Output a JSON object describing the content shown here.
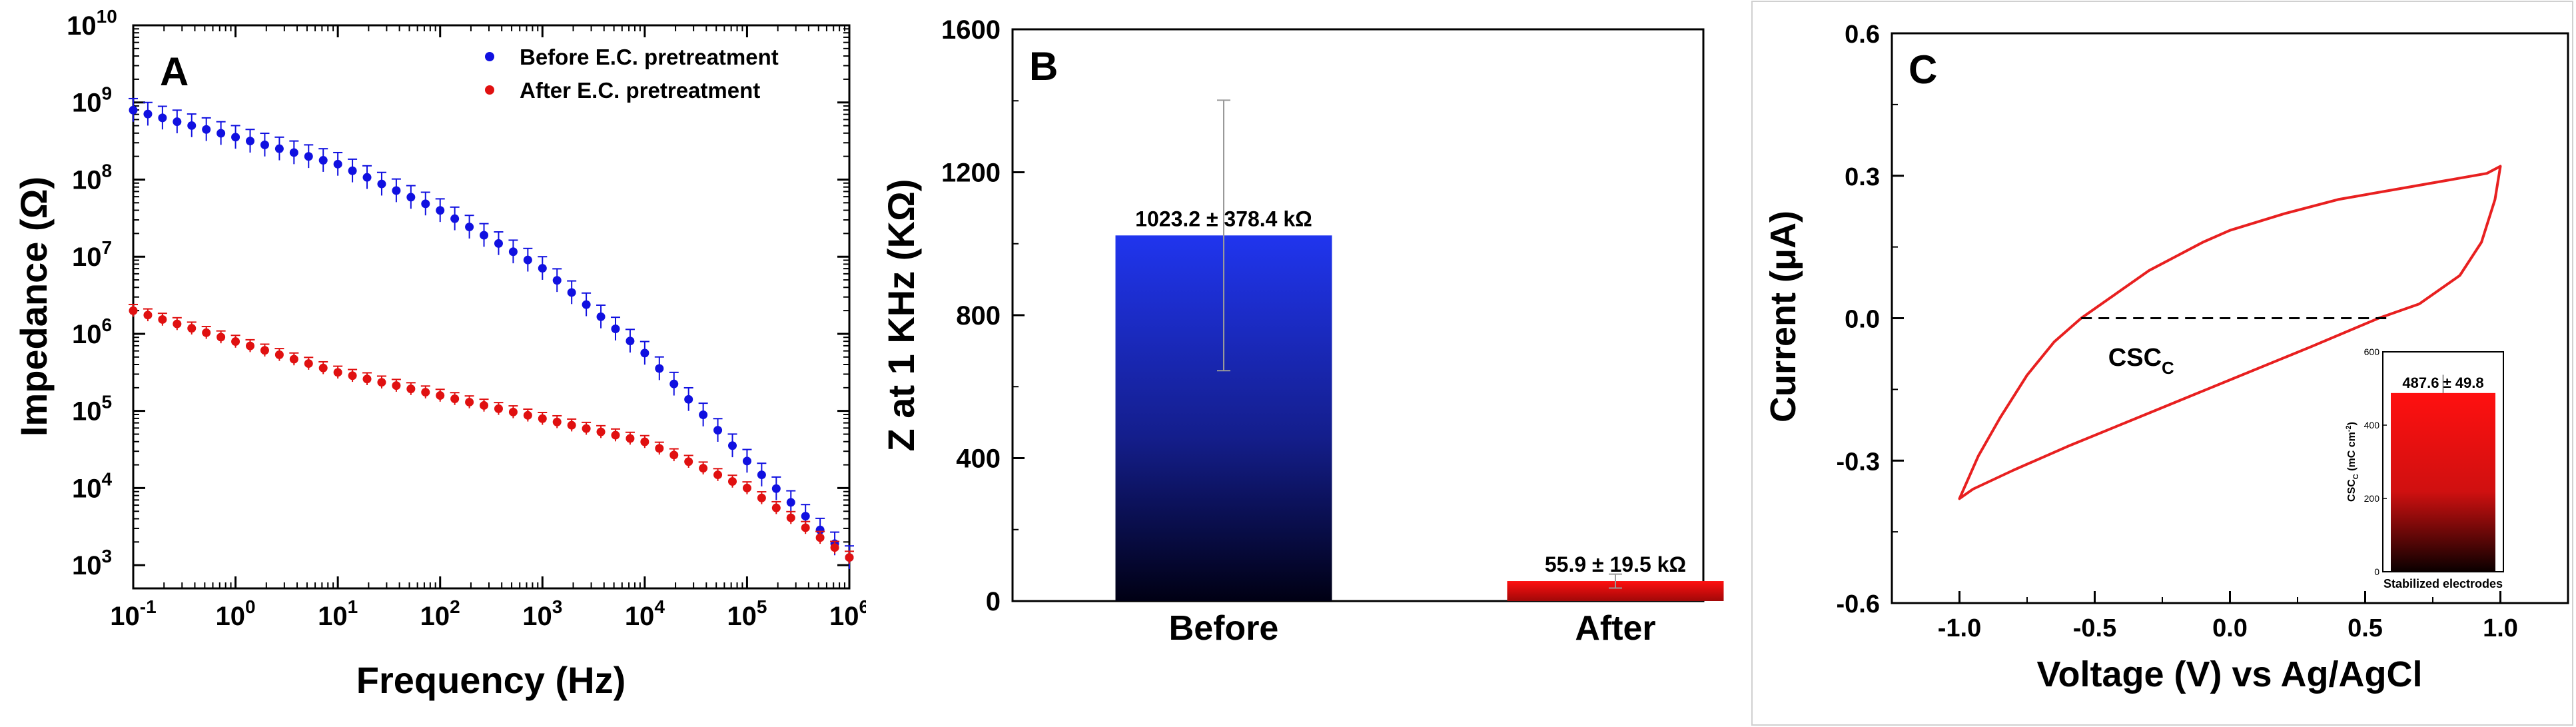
{
  "chart_data": [
    {
      "panel_label": "A",
      "type": "scatter",
      "xlabel": "Frequency (Hz)",
      "ylabel": "Impedance (Ω)",
      "x_scale": "log",
      "y_scale": "log",
      "xlim": [
        0.1,
        1000000
      ],
      "ylim": [
        500,
        10000000000
      ],
      "x_ticks": [
        {
          "base": "10",
          "exp": "-1"
        },
        {
          "base": "10",
          "exp": "0"
        },
        {
          "base": "10",
          "exp": "1"
        },
        {
          "base": "10",
          "exp": "2"
        },
        {
          "base": "10",
          "exp": "3"
        },
        {
          "base": "10",
          "exp": "4"
        },
        {
          "base": "10",
          "exp": "5"
        },
        {
          "base": "10",
          "exp": "6"
        }
      ],
      "y_ticks": [
        {
          "base": "10",
          "exp": "3"
        },
        {
          "base": "10",
          "exp": "4"
        },
        {
          "base": "10",
          "exp": "5"
        },
        {
          "base": "10",
          "exp": "6"
        },
        {
          "base": "10",
          "exp": "7"
        },
        {
          "base": "10",
          "exp": "8"
        },
        {
          "base": "10",
          "exp": "9"
        },
        {
          "base": "10",
          "exp": "10"
        }
      ],
      "legend_position": "top-right",
      "series": [
        {
          "name": "Before E.C. pretreatment",
          "color": "#1010e0",
          "x_log_start": -1,
          "x_log_end": 6,
          "n_points": 50,
          "log_anchors": [
            [
              -1,
              8.9
            ],
            [
              0,
              8.55
            ],
            [
              1,
              8.2
            ],
            [
              2,
              7.6
            ],
            [
              3,
              6.85
            ],
            [
              4,
              5.75
            ],
            [
              5,
              4.35
            ],
            [
              6,
              3.1
            ]
          ],
          "error_log": 0.15
        },
        {
          "name": "After E.C. pretreatment",
          "color": "#e01010",
          "x_log_start": -1,
          "x_log_end": 6,
          "n_points": 50,
          "log_anchors": [
            [
              -1,
              6.3
            ],
            [
              0,
              5.9
            ],
            [
              1,
              5.5
            ],
            [
              2,
              5.2
            ],
            [
              3,
              4.9
            ],
            [
              4,
              4.6
            ],
            [
              5,
              4.0
            ],
            [
              6,
              3.1
            ]
          ],
          "error_log": 0.08
        }
      ]
    },
    {
      "panel_label": "B",
      "type": "bar",
      "ylabel": "Z at 1 KHz (KΩ)",
      "ylim": [
        0,
        1600
      ],
      "y_ticks": [
        "0",
        "400",
        "800",
        "1200",
        "1600"
      ],
      "categories": [
        "Before",
        "After"
      ],
      "values": [
        1023.2,
        55.9
      ],
      "errors": [
        378.4,
        19.5
      ],
      "value_labels": [
        "1023.2 ± 378.4 kΩ",
        "55.9 ± 19.5 kΩ"
      ],
      "colors": [
        "#1f35e0",
        "#ee1010"
      ]
    },
    {
      "panel_label": "C",
      "type": "line",
      "xlabel": "Voltage (V) vs Ag/AgCl",
      "ylabel": "Current (μA)",
      "xlim": [
        -1.25,
        1.25
      ],
      "ylim": [
        -0.6,
        0.6
      ],
      "x_ticks": [
        "-1.0",
        "-0.5",
        "0.0",
        "0.5",
        "1.0"
      ],
      "y_ticks": [
        "-0.6",
        "-0.3",
        "0.0",
        "0.3",
        "0.6"
      ],
      "color": "#e82020",
      "upper_branch": [
        [
          -1.0,
          -0.38
        ],
        [
          -0.93,
          -0.29
        ],
        [
          -0.85,
          -0.21
        ],
        [
          -0.75,
          -0.12
        ],
        [
          -0.65,
          -0.05
        ],
        [
          -0.55,
          0.0
        ],
        [
          -0.45,
          0.04
        ],
        [
          -0.35,
          0.08
        ],
        [
          -0.3,
          0.1
        ],
        [
          -0.2,
          0.13
        ],
        [
          -0.1,
          0.16
        ],
        [
          0.0,
          0.185
        ],
        [
          0.2,
          0.22
        ],
        [
          0.4,
          0.25
        ],
        [
          0.6,
          0.27
        ],
        [
          0.8,
          0.29
        ],
        [
          0.95,
          0.305
        ],
        [
          1.0,
          0.32
        ]
      ],
      "lower_branch": [
        [
          1.0,
          0.32
        ],
        [
          0.98,
          0.25
        ],
        [
          0.93,
          0.16
        ],
        [
          0.85,
          0.09
        ],
        [
          0.7,
          0.03
        ],
        [
          0.55,
          0.0
        ],
        [
          0.3,
          -0.06
        ],
        [
          0.0,
          -0.13
        ],
        [
          -0.3,
          -0.2
        ],
        [
          -0.6,
          -0.27
        ],
        [
          -0.8,
          -0.32
        ],
        [
          -0.95,
          -0.36
        ],
        [
          -1.0,
          -0.38
        ]
      ],
      "dashed_line": {
        "y": 0.0,
        "x_from": -0.55,
        "x_to": 0.6
      },
      "annotation": {
        "text": "CSC",
        "sub": "C"
      },
      "inset": {
        "type": "bar",
        "category": "Stabilized electrodes",
        "value": 487.6,
        "error": 49.8,
        "value_label": "487.6 ± 49.8",
        "ylabel": "CSC",
        "ylabel_sub": "C",
        "ylabel_unit": " (mC cm",
        "ylabel_unit_sup": "-2",
        "ylabel_unit_end": ")",
        "ylim": [
          0,
          600
        ],
        "y_ticks": [
          "0",
          "200",
          "400",
          "600"
        ],
        "color": "#ee1010"
      }
    }
  ]
}
